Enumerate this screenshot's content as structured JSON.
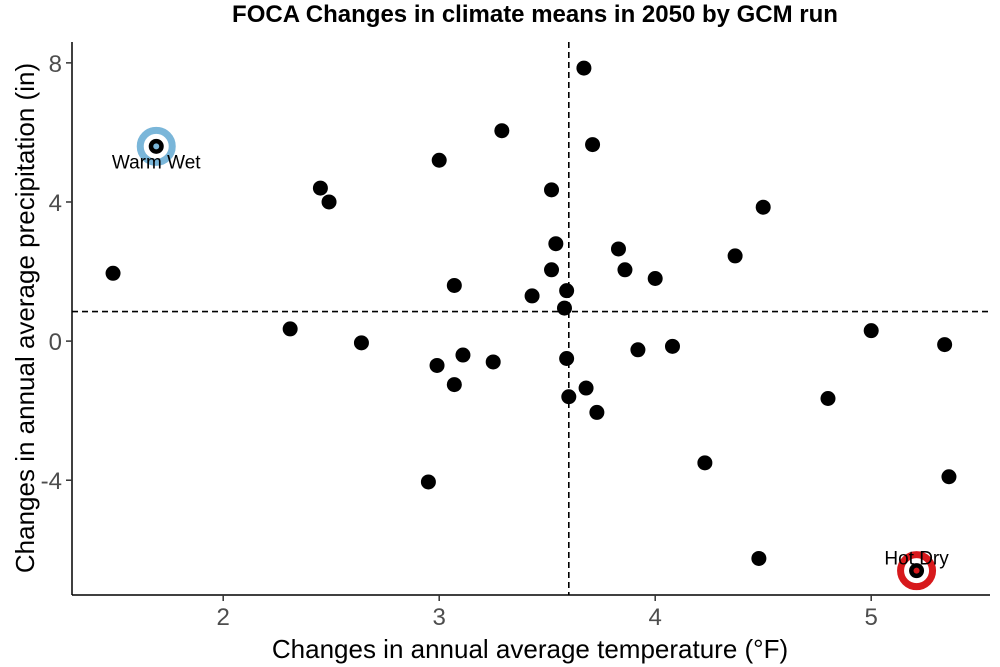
{
  "chart_data": {
    "type": "scatter",
    "title": "FOCA Changes in climate means in 2050 by GCM run",
    "xlabel": "Changes in annual average temperature (°F)",
    "ylabel": "Changes in annual average precipitation (in)",
    "xlim": [
      1.3,
      5.55
    ],
    "ylim": [
      -7.3,
      8.6
    ],
    "xticks": [
      2,
      3,
      4,
      5
    ],
    "yticks": [
      -4,
      0,
      4,
      8
    ],
    "xtick_labels": [
      "2",
      "3",
      "4",
      "5"
    ],
    "ytick_labels": [
      "-4",
      "0",
      "4",
      "8"
    ],
    "grid": false,
    "reference_lines": {
      "x": 3.6,
      "y": 0.85
    },
    "point_color": "#000000",
    "points": [
      {
        "x": 1.49,
        "y": 1.95
      },
      {
        "x": 1.69,
        "y": 5.6
      },
      {
        "x": 2.31,
        "y": 0.35
      },
      {
        "x": 2.45,
        "y": 4.4
      },
      {
        "x": 2.49,
        "y": 4.0
      },
      {
        "x": 2.64,
        "y": -0.05
      },
      {
        "x": 2.95,
        "y": -4.05
      },
      {
        "x": 2.99,
        "y": -0.7
      },
      {
        "x": 3.0,
        "y": 5.2
      },
      {
        "x": 3.07,
        "y": 1.6
      },
      {
        "x": 3.07,
        "y": -1.25
      },
      {
        "x": 3.11,
        "y": -0.4
      },
      {
        "x": 3.25,
        "y": -0.6
      },
      {
        "x": 3.29,
        "y": 6.05
      },
      {
        "x": 3.43,
        "y": 1.3
      },
      {
        "x": 3.52,
        "y": 4.35
      },
      {
        "x": 3.52,
        "y": 2.05
      },
      {
        "x": 3.54,
        "y": 2.8
      },
      {
        "x": 3.58,
        "y": 0.95
      },
      {
        "x": 3.59,
        "y": 1.45
      },
      {
        "x": 3.59,
        "y": -0.5
      },
      {
        "x": 3.6,
        "y": -1.6
      },
      {
        "x": 3.67,
        "y": 7.85
      },
      {
        "x": 3.68,
        "y": -1.35
      },
      {
        "x": 3.71,
        "y": 5.65
      },
      {
        "x": 3.73,
        "y": -2.05
      },
      {
        "x": 3.83,
        "y": 2.65
      },
      {
        "x": 3.86,
        "y": 2.05
      },
      {
        "x": 3.92,
        "y": -0.25
      },
      {
        "x": 4.0,
        "y": 1.8
      },
      {
        "x": 4.08,
        "y": -0.15
      },
      {
        "x": 4.23,
        "y": -3.5
      },
      {
        "x": 4.37,
        "y": 2.45
      },
      {
        "x": 4.48,
        "y": -6.25
      },
      {
        "x": 4.5,
        "y": 3.85
      },
      {
        "x": 4.8,
        "y": -1.65
      },
      {
        "x": 5.0,
        "y": 0.3
      },
      {
        "x": 5.21,
        "y": -6.6
      },
      {
        "x": 5.34,
        "y": -0.1
      },
      {
        "x": 5.36,
        "y": -3.9
      }
    ],
    "highlights": [
      {
        "label": "Warm Wet",
        "x": 1.69,
        "y": 5.6,
        "color": "#7ab6d9",
        "label_anchor": "below"
      },
      {
        "label": "Hot Dry",
        "x": 5.21,
        "y": -6.6,
        "color": "#d7191c",
        "label_anchor": "above"
      }
    ]
  }
}
